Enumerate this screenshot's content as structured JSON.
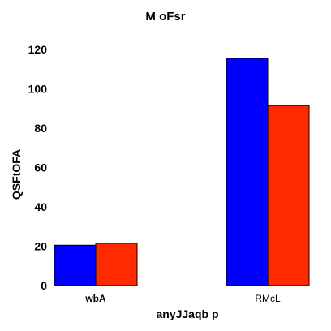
{
  "chart_data": {
    "type": "bar",
    "title": "M oFsr",
    "xlabel": "anyJJaqb p",
    "ylabel": "QSFtOFA",
    "categories": [
      "wbA",
      "RMcL"
    ],
    "series": [
      {
        "values": [
          20.5,
          115.5
        ],
        "color": "#0000ff"
      },
      {
        "values": [
          21.5,
          91.5
        ],
        "color": "#ff2a00"
      }
    ],
    "ylim": [
      0,
      120
    ],
    "yticks": [
      0,
      20,
      40,
      60,
      80,
      100,
      120
    ],
    "grid": false,
    "legend": "none"
  }
}
